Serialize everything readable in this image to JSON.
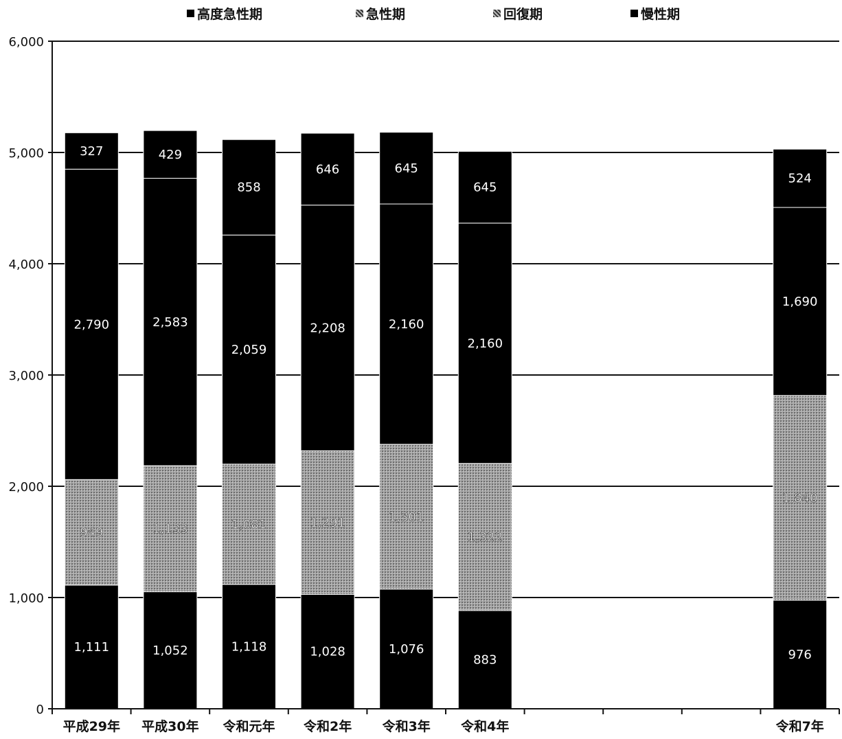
{
  "chart_data": {
    "type": "bar",
    "stacked": true,
    "title": "",
    "xlabel": "",
    "ylabel": "",
    "ylim": [
      0,
      6000
    ],
    "yticks": [
      "0",
      "1,000",
      "2,000",
      "3,000",
      "4,000",
      "5,000",
      "6,000"
    ],
    "grid": true,
    "legend_position": "top",
    "categories": [
      "平成29年",
      "平成30年",
      "令和元年",
      "令和2年",
      "令和3年",
      "令和4年",
      "",
      "",
      "",
      "令和7年"
    ],
    "series": [
      {
        "name": "高度急性期",
        "color": "#000000",
        "values": [
          1111,
          1052,
          1118,
          1028,
          1076,
          883,
          null,
          null,
          null,
          976
        ],
        "labels": [
          "1,111",
          "1,052",
          "1,118",
          "1,028",
          "1,076",
          "883",
          "",
          "",
          "",
          "976"
        ]
      },
      {
        "name": "急性期",
        "color": "#9a9a9a",
        "pattern": "hatched",
        "values": [
          949,
          1133,
          1081,
          1291,
          1301,
          1322,
          null,
          null,
          null,
          1840
        ],
        "labels": [
          "949",
          "1,133",
          "1,081",
          "1,291",
          "1,301",
          "1,322",
          "",
          "",
          "",
          "1,840"
        ]
      },
      {
        "name": "回復期",
        "color": "#000000",
        "values": [
          2790,
          2583,
          2059,
          2208,
          2160,
          2160,
          null,
          null,
          null,
          1690
        ],
        "labels": [
          "2,790",
          "2,583",
          "2,059",
          "2,208",
          "2,160",
          "2,160",
          "",
          "",
          "",
          "1,690"
        ]
      },
      {
        "name": "慢性期",
        "color": "#000000",
        "values": [
          327,
          429,
          858,
          646,
          645,
          645,
          null,
          null,
          null,
          524
        ],
        "labels": [
          "327",
          "429",
          "858",
          "646",
          "645",
          "645",
          "",
          "",
          "",
          "524"
        ]
      }
    ]
  }
}
